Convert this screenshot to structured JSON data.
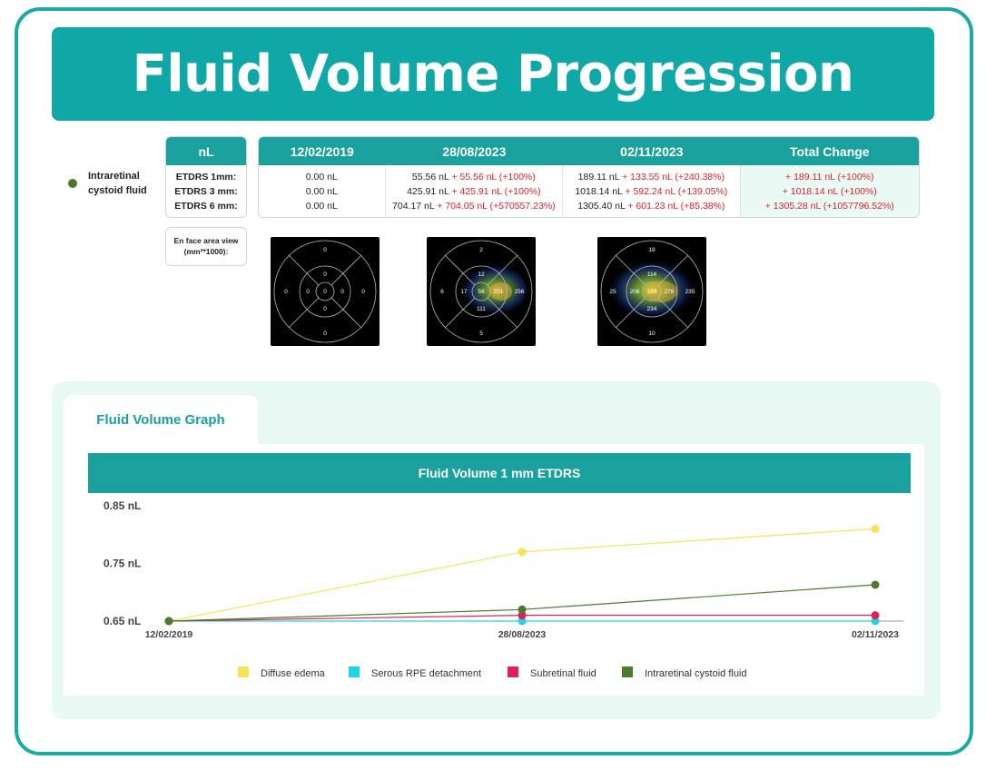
{
  "title": "Fluid Volume Progression",
  "fluid_label": "Intraretinal cystoid fluid",
  "fluid_color": "#4a7c2a",
  "unit_header": "nL",
  "row_labels": [
    "ETDRS 1mm:",
    "ETDRS 3 mm:",
    "ETDRS 6 mm:"
  ],
  "enface_label": "En face area view (mm²*1000):",
  "columns": [
    {
      "header": "12/02/2019",
      "rows": [
        {
          "value": "0.00 nL",
          "change": ""
        },
        {
          "value": "0.00 nL",
          "change": ""
        },
        {
          "value": "0.00 nL",
          "change": ""
        }
      ]
    },
    {
      "header": "28/08/2023",
      "rows": [
        {
          "value": "55.56 nL",
          "change": "+ 55.56 nL (+100%)"
        },
        {
          "value": "425.91 nL",
          "change": "+ 425.91 nL (+100%)"
        },
        {
          "value": "704.17 nL",
          "change": "+ 704.05 nL (+570557.23%)"
        }
      ]
    },
    {
      "header": "02/11/2023",
      "rows": [
        {
          "value": "189.11 nL",
          "change": "+ 133.55 nL (+240.38%)"
        },
        {
          "value": "1018.14 nL",
          "change": "+ 592.24 nL (+139.05%)"
        },
        {
          "value": "1305.40 nL",
          "change": "+ 601.23 nL (+85.38%)"
        }
      ]
    }
  ],
  "total": {
    "header": "Total Change",
    "rows": [
      "+ 189.11 nL (+100%)",
      "+ 1018.14 nL (+100%)",
      "+ 1305.28 nL (+1057796.52%)"
    ]
  },
  "grids": [
    {
      "center": "0",
      "ring_top": "0",
      "ring_right": "0",
      "ring_bottom": "0",
      "ring_left": "0",
      "outer_top": "0",
      "outer_right": "0",
      "outer_bottom": "0",
      "outer_left": "0"
    },
    {
      "center": "56",
      "ring_top": "12",
      "ring_right": "231",
      "ring_bottom": "111",
      "ring_left": "17",
      "outer_top": "2",
      "outer_right": "256",
      "outer_bottom": "5",
      "outer_left": "6"
    },
    {
      "center": "189",
      "ring_top": "114",
      "ring_right": "278",
      "ring_bottom": "234",
      "ring_left": "206",
      "outer_top": "18",
      "outer_right": "235",
      "outer_bottom": "10",
      "outer_left": "25"
    }
  ],
  "graph_tab": "Fluid Volume Graph",
  "chart_data": {
    "type": "line",
    "title": "Fluid Volume 1 mm ETDRS",
    "categories": [
      "12/02/2019",
      "28/08/2023",
      "02/11/2023"
    ],
    "y_ticks": [
      "0.65 nL",
      "0.75 nL",
      "0.85 nL"
    ],
    "ylim": [
      0.65,
      0.85
    ],
    "grid": false,
    "legend_position": "bottom",
    "series": [
      {
        "name": "Diffuse edema",
        "color": "#f7e35a",
        "values": [
          0.65,
          0.77,
          0.81
        ]
      },
      {
        "name": "Serous RPE detachment",
        "color": "#22d3e6",
        "values": [
          0.65,
          0.65,
          0.65
        ]
      },
      {
        "name": "Subretinal fluid",
        "color": "#e0205c",
        "values": [
          0.65,
          0.66,
          0.66
        ]
      },
      {
        "name": "Intraretinal cystoid fluid",
        "color": "#4a7c2a",
        "values": [
          0.65,
          0.67,
          0.713
        ]
      }
    ]
  }
}
